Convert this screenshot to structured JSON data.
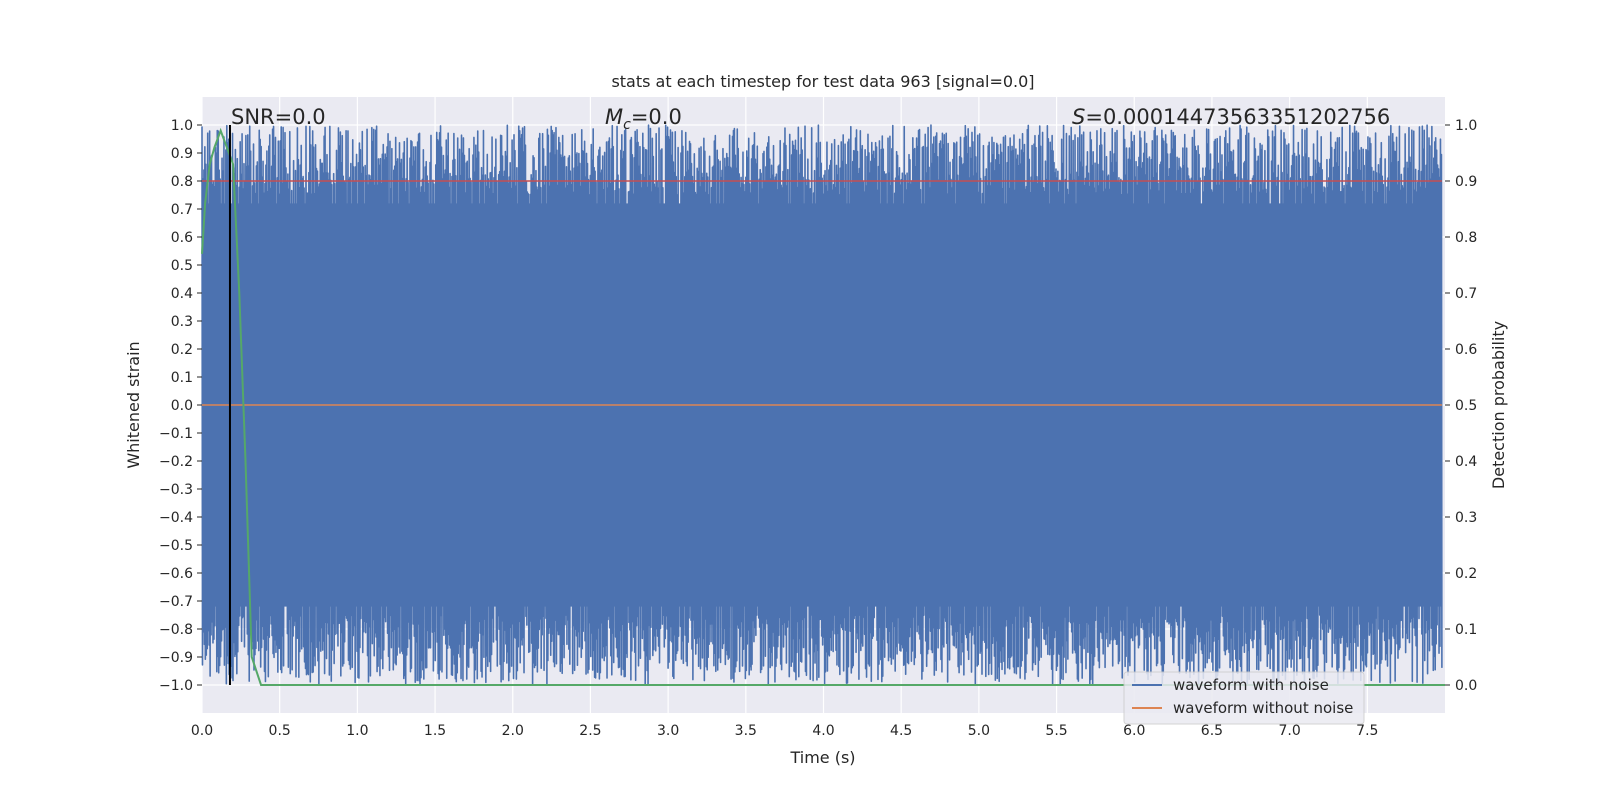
{
  "chart_data": {
    "type": "line",
    "title": "stats at each timestep for test data 963 [signal=0.0]",
    "xlabel": "Time (s)",
    "ylabel": "Whitened strain",
    "y2label": "Detection probability",
    "xlim": [
      0.0,
      8.0
    ],
    "ylim": [
      -1.1,
      1.1
    ],
    "y2lim": [
      -0.05,
      1.05
    ],
    "x_ticks": [
      "0.0",
      "0.5",
      "1.0",
      "1.5",
      "2.0",
      "2.5",
      "3.0",
      "3.5",
      "4.0",
      "4.5",
      "5.0",
      "5.5",
      "6.0",
      "6.5",
      "7.0",
      "7.5"
    ],
    "y_ticks": [
      "1.0",
      "0.9",
      "0.8",
      "0.7",
      "0.6",
      "0.5",
      "0.4",
      "0.3",
      "0.2",
      "0.1",
      "0.0",
      "−0.1",
      "−0.2",
      "−0.3",
      "−0.4",
      "−0.5",
      "−0.6",
      "−0.7",
      "−0.8",
      "−0.9",
      "−1.0"
    ],
    "y2_ticks": [
      "1.0",
      "0.9",
      "0.8",
      "0.7",
      "0.6",
      "0.5",
      "0.4",
      "0.3",
      "0.2",
      "0.1",
      "0.0"
    ],
    "grid": true,
    "legend_position": "lower-right",
    "annotations": {
      "snr": "SNR=0.0",
      "mc_symbol": "M",
      "mc_sub": "c",
      "mc_value": "=0.0",
      "s_symbol": "S",
      "s_value": "=0.00014473563351202756"
    },
    "series": [
      {
        "name": "waveform with noise",
        "color": "#4c72b0",
        "description_range": [
          -1.0,
          1.0
        ]
      },
      {
        "name": "waveform without noise",
        "color": "#dd8452",
        "value": 0.0
      },
      {
        "color": "#55a868",
        "axis": "y2",
        "x": [
          0.0,
          0.02,
          0.05,
          0.08,
          0.12,
          0.16,
          0.2,
          0.24,
          0.28,
          0.32,
          0.38,
          0.5,
          1.0,
          2.0,
          3.0,
          4.0,
          5.0,
          6.0,
          7.0,
          8.0
        ],
        "values": [
          0.77,
          0.86,
          0.93,
          0.96,
          0.99,
          0.96,
          0.93,
          0.7,
          0.4,
          0.05,
          0.0,
          0.0,
          0.0,
          0.0,
          0.0,
          0.0,
          0.0,
          0.0,
          0.0,
          0.0
        ]
      }
    ],
    "threshold": {
      "color": "#c44e52",
      "axis": "y2",
      "value": 0.9
    },
    "marker_line": {
      "color": "#000000",
      "x": 0.18
    }
  }
}
